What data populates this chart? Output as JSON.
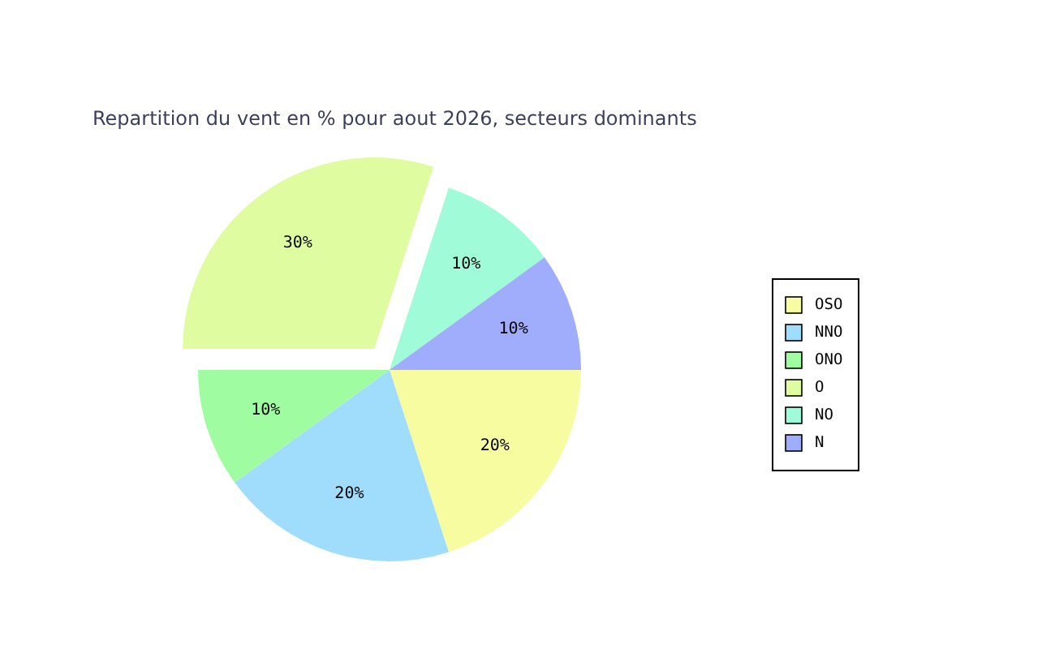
{
  "chart_data": {
    "type": "pie",
    "title": "Repartition du vent en % pour aout 2026, secteurs dominants",
    "categories": [
      "OSO",
      "NNO",
      "ONO",
      "O",
      "NO",
      "N"
    ],
    "values": [
      20,
      20,
      10,
      30,
      10,
      10
    ],
    "colors": [
      "#f8fca0",
      "#a0dcfc",
      "#a0fca0",
      "#e0fca0",
      "#a0fcd8",
      "#a0acfc"
    ],
    "value_labels": [
      "20%",
      "20%",
      "10%",
      "30%",
      "10%",
      "10%"
    ],
    "legend": "right"
  }
}
